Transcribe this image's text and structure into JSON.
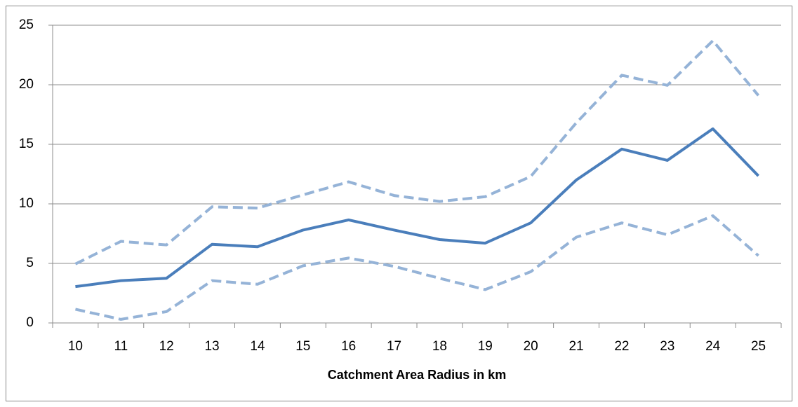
{
  "chart_data": {
    "type": "line",
    "x_label": "Catchment Area Radius in km",
    "categories": [
      "10",
      "11",
      "12",
      "13",
      "14",
      "15",
      "16",
      "17",
      "18",
      "19",
      "20",
      "21",
      "22",
      "23",
      "24",
      "25"
    ],
    "series": [
      {
        "color": "#4a7ebb",
        "style": "solid",
        "values": [
          3.05,
          3.55,
          3.75,
          6.6,
          6.4,
          7.8,
          8.65,
          7.8,
          7.0,
          6.7,
          8.4,
          12.0,
          14.6,
          13.65,
          16.3,
          12.35
        ]
      },
      {
        "color": "#95b3d7",
        "style": "dashed",
        "values": [
          4.95,
          6.85,
          6.55,
          9.75,
          9.65,
          10.75,
          11.85,
          10.7,
          10.2,
          10.6,
          12.3,
          16.8,
          20.8,
          19.95,
          23.7,
          19.1
        ]
      },
      {
        "color": "#95b3d7",
        "style": "dashed",
        "values": [
          1.15,
          0.3,
          0.95,
          3.55,
          3.25,
          4.8,
          5.45,
          4.75,
          3.75,
          2.8,
          4.3,
          7.2,
          8.4,
          7.4,
          9.0,
          5.65
        ]
      }
    ],
    "ylim": [
      0,
      25
    ],
    "yticks": [
      0,
      5,
      10,
      15,
      20,
      25
    ],
    "grid": true
  }
}
